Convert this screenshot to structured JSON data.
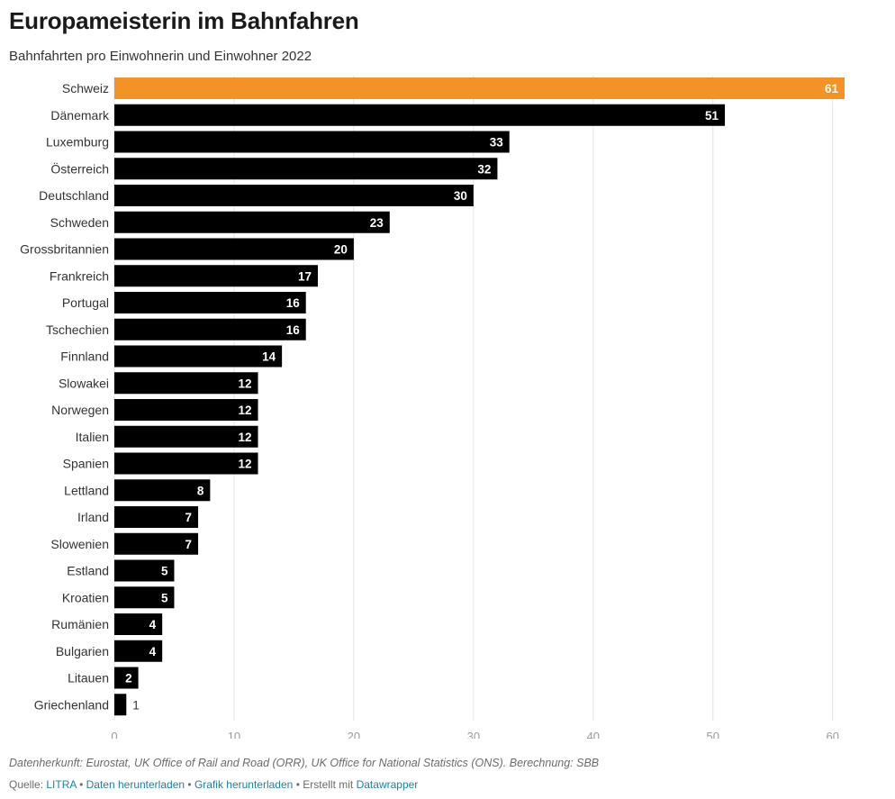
{
  "title": "Europameisterin im Bahnfahren",
  "subtitle": "Bahnfahrten pro Einwohnerin und Einwohner 2022",
  "notes": "Datenherkunft: Eurostat, UK Office of Rail and Road (ORR), UK Office for National Statistics (ONS). Berechnung: SBB",
  "footer": {
    "source_label": "Quelle:",
    "source_link": "LITRA",
    "sep": "•",
    "data_download": "Daten herunterladen",
    "graphic_download": "Grafik herunterladen",
    "created_with": "Erstellt mit",
    "tool": "Datawrapper"
  },
  "colors": {
    "highlight": "#f39325",
    "bar": "#000000",
    "grid": "#e3e3e3",
    "link": "#1d81a2"
  },
  "chart_data": {
    "type": "bar",
    "orientation": "horizontal",
    "categories": [
      "Schweiz",
      "Dänemark",
      "Luxemburg",
      "Österreich",
      "Deutschland",
      "Schweden",
      "Grossbritannien",
      "Frankreich",
      "Portugal",
      "Tschechien",
      "Finnland",
      "Slowakei",
      "Norwegen",
      "Italien",
      "Spanien",
      "Lettland",
      "Irland",
      "Slowenien",
      "Estland",
      "Kroatien",
      "Rumänien",
      "Bulgarien",
      "Litauen",
      "Griechenland"
    ],
    "values": [
      61,
      51,
      33,
      32,
      30,
      23,
      20,
      17,
      16,
      16,
      14,
      12,
      12,
      12,
      12,
      8,
      7,
      7,
      5,
      5,
      4,
      4,
      2,
      1
    ],
    "highlight": [
      "Schweiz"
    ],
    "xlim": [
      0,
      61
    ],
    "xticks": [
      0,
      10,
      20,
      30,
      40,
      50,
      60
    ],
    "grid": "vertical",
    "value_labels": true
  }
}
